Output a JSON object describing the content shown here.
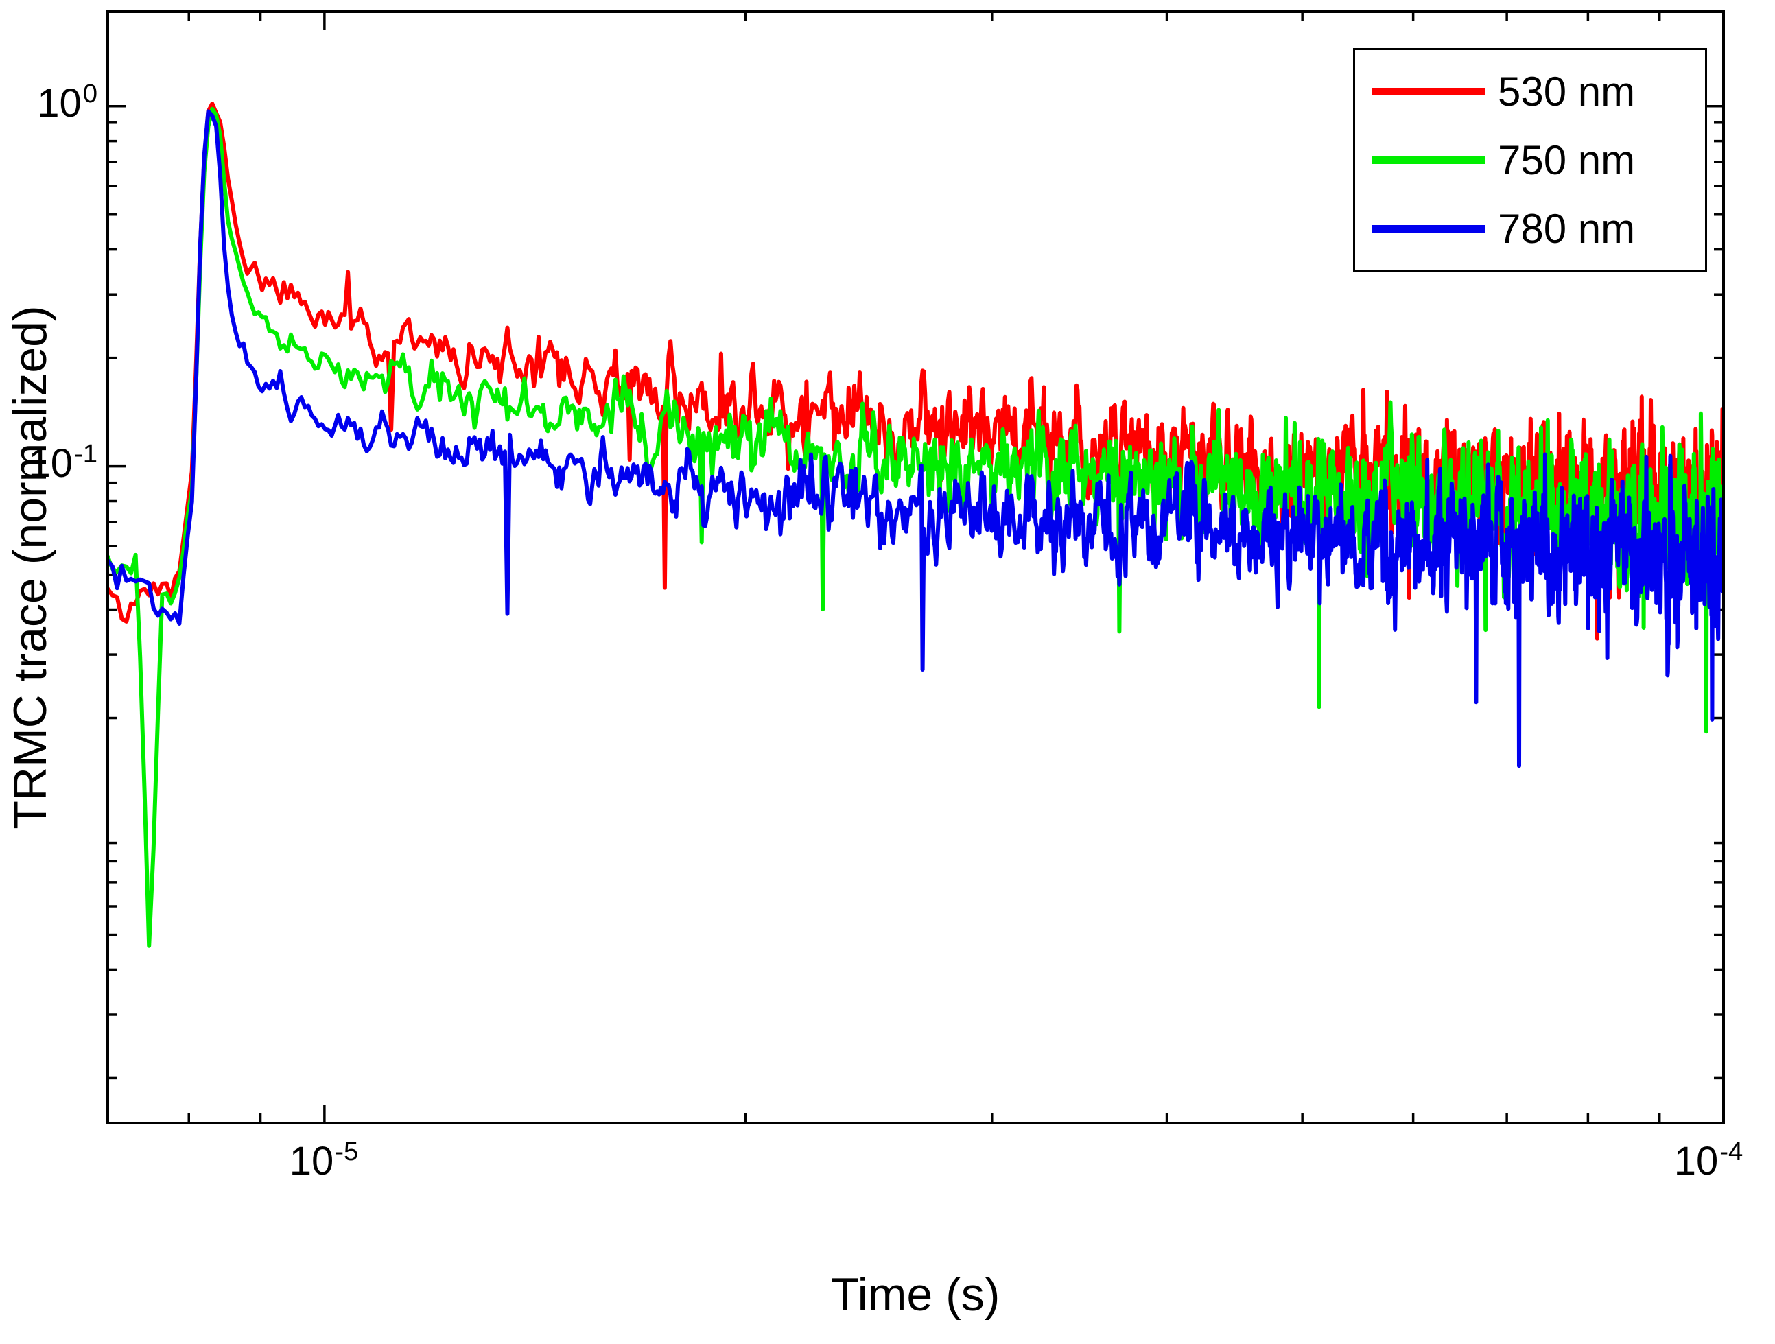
{
  "chart_data": {
    "type": "line",
    "title": "",
    "xlabel": "Time (s)",
    "ylabel": "TRMC trace (normalized)",
    "xscale": "log",
    "yscale": "log",
    "xlim": [
      7e-06,
      0.0001
    ],
    "ylim": [
      0.0015,
      1.83
    ],
    "grid": false,
    "legend_position": "top-right",
    "samples": 1700,
    "x_ticks": [
      {
        "value": 1e-05,
        "mantissa": "10",
        "exponent": "-5"
      },
      {
        "value": 0.0001,
        "mantissa": "10",
        "exponent": "-4"
      }
    ],
    "y_ticks": [
      {
        "value": 1.0,
        "mantissa": "10",
        "exponent": "0"
      },
      {
        "value": 0.1,
        "mantissa": "10",
        "exponent": "-1"
      }
    ],
    "series": [
      {
        "name": "530 nm",
        "color": "#ff0000",
        "seed": 11,
        "anchors": [
          [
            7e-06,
            0.05
          ],
          [
            7.5e-06,
            0.055
          ],
          [
            7.9e-06,
            0.048
          ],
          [
            8.05e-06,
            0.1
          ],
          [
            8.18e-06,
            0.6
          ],
          [
            8.28e-06,
            1.03
          ],
          [
            8.4e-06,
            0.98
          ],
          [
            8.55e-06,
            0.6
          ],
          [
            8.75e-06,
            0.38
          ],
          [
            9e-06,
            0.33
          ],
          [
            9.5e-06,
            0.295
          ],
          [
            1e-05,
            0.26
          ],
          [
            1.1e-05,
            0.225
          ],
          [
            1.25e-05,
            0.2
          ],
          [
            1.45e-05,
            0.178
          ],
          [
            1.7e-05,
            0.16
          ],
          [
            2e-05,
            0.147
          ],
          [
            2.4e-05,
            0.135
          ],
          [
            3e-05,
            0.122
          ],
          [
            3.8e-05,
            0.111
          ],
          [
            4.8e-05,
            0.101
          ],
          [
            6e-05,
            0.094
          ],
          [
            7.5e-05,
            0.088
          ],
          [
            9e-05,
            0.084
          ],
          [
            0.0001,
            0.082
          ]
        ]
      },
      {
        "name": "750 nm",
        "color": "#00ee00",
        "seed": 23,
        "anchors": [
          [
            7e-06,
            0.048
          ],
          [
            7.35e-06,
            0.04
          ],
          [
            7.5e-06,
            0.0035
          ],
          [
            7.65e-06,
            0.038
          ],
          [
            7.9e-06,
            0.05
          ],
          [
            8.05e-06,
            0.09
          ],
          [
            8.18e-06,
            0.55
          ],
          [
            8.28e-06,
            1.02
          ],
          [
            8.4e-06,
            0.9
          ],
          [
            8.55e-06,
            0.45
          ],
          [
            8.75e-06,
            0.3
          ],
          [
            9e-06,
            0.25
          ],
          [
            9.5e-06,
            0.215
          ],
          [
            1e-05,
            0.19
          ],
          [
            1.1e-05,
            0.172
          ],
          [
            1.25e-05,
            0.157
          ],
          [
            1.45e-05,
            0.142
          ],
          [
            1.7e-05,
            0.128
          ],
          [
            2e-05,
            0.115
          ],
          [
            2.4e-05,
            0.105
          ],
          [
            3e-05,
            0.097
          ],
          [
            3.8e-05,
            0.09
          ],
          [
            4.8e-05,
            0.084
          ],
          [
            6e-05,
            0.08
          ],
          [
            7.5e-05,
            0.076
          ],
          [
            9e-05,
            0.073
          ],
          [
            0.0001,
            0.072
          ]
        ]
      },
      {
        "name": "780 nm",
        "color": "#0000ee",
        "seed": 37,
        "anchors": [
          [
            7e-06,
            0.05
          ],
          [
            7.5e-06,
            0.046
          ],
          [
            7.9e-06,
            0.05
          ],
          [
            8.05e-06,
            0.09
          ],
          [
            8.18e-06,
            0.65
          ],
          [
            8.26e-06,
            1.05
          ],
          [
            8.38e-06,
            0.9
          ],
          [
            8.5e-06,
            0.35
          ],
          [
            8.65e-06,
            0.22
          ],
          [
            8.9e-06,
            0.175
          ],
          [
            9.5e-06,
            0.15
          ],
          [
            1e-05,
            0.135
          ],
          [
            1.1e-05,
            0.122
          ],
          [
            1.25e-05,
            0.111
          ],
          [
            1.45e-05,
            0.101
          ],
          [
            1.7e-05,
            0.093
          ],
          [
            2e-05,
            0.086
          ],
          [
            2.4e-05,
            0.08
          ],
          [
            3e-05,
            0.074
          ],
          [
            3.8e-05,
            0.069
          ],
          [
            4.8e-05,
            0.065
          ],
          [
            6e-05,
            0.061
          ],
          [
            7.5e-05,
            0.058
          ],
          [
            9e-05,
            0.056
          ],
          [
            0.0001,
            0.055
          ]
        ]
      }
    ]
  }
}
